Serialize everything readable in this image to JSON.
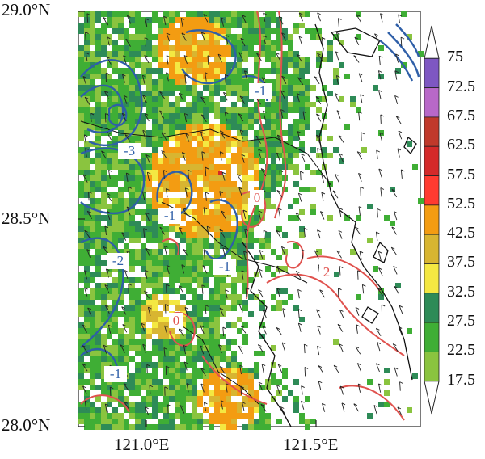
{
  "map": {
    "latitude_labels": [
      "29.0°N",
      "28.5°N",
      "28.0°N"
    ],
    "longitude_labels": [
      "121.0°E",
      "121.5°E"
    ],
    "contours": {
      "blue_labels": [
        "-1",
        "-3",
        "-1",
        "-2",
        "-1",
        "-1"
      ],
      "red_labels": [
        "0",
        "2",
        "0"
      ],
      "blue_color": "#2f5fa8",
      "red_color": "#e0524e"
    }
  },
  "colorbar": {
    "labels": [
      "75",
      "72.5",
      "67.5",
      "62.5",
      "57.5",
      "52.5",
      "42.5",
      "37.5",
      "32.5",
      "27.5",
      "22.5",
      "17.5"
    ],
    "colors": [
      "#ffffff",
      "#7e57c2",
      "#b868c8",
      "#c0392b",
      "#d42a2a",
      "#ff3b30",
      "#f39c12",
      "#d8b531",
      "#f4e842",
      "#2e8b57",
      "#3fae35",
      "#8ac43f",
      "#ffffff"
    ]
  },
  "radar_colors": {
    "green_light": "#8ac43f",
    "green": "#3fae35",
    "green_dark": "#2e8b57",
    "yellow": "#f4e842",
    "mustard": "#d8b531",
    "orange": "#f39c12",
    "red": "#d42a2a"
  }
}
